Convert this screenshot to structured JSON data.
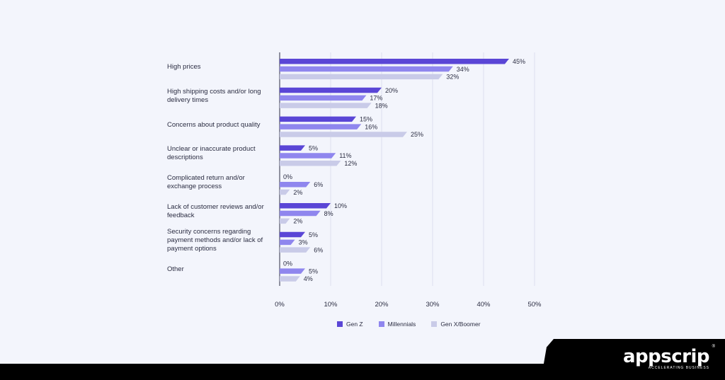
{
  "chart_data": {
    "type": "bar",
    "orientation": "horizontal",
    "categories": [
      "High prices",
      "High shipping costs and/or long delivery times",
      "Concerns about product quality",
      "Unclear or inaccurate product descriptions",
      "Complicated return and/or exchange process",
      "Lack of customer reviews and/or feedback",
      "Security concerns regarding payment methods and/or lack of payment options",
      "Other"
    ],
    "series": [
      {
        "name": "Gen Z",
        "color": "#5a46d6",
        "values": [
          45,
          20,
          15,
          5,
          0,
          10,
          5,
          0
        ]
      },
      {
        "name": "Millennials",
        "color": "#8f86ee",
        "values": [
          34,
          17,
          16,
          11,
          6,
          8,
          3,
          5
        ]
      },
      {
        "name": "Gen X/Boomer",
        "color": "#c9cbe8",
        "values": [
          32,
          18,
          25,
          12,
          2,
          2,
          6,
          4
        ]
      }
    ],
    "value_suffix": "%",
    "xlim": [
      0,
      50
    ],
    "x_ticks": [
      "0%",
      "10%",
      "20%",
      "30%",
      "40%",
      "50%"
    ],
    "grid": true,
    "legend_position": "bottom"
  },
  "brand": {
    "name": "appscrip",
    "tagline": "ACCELERATING BUSINESS",
    "registered": "®"
  }
}
